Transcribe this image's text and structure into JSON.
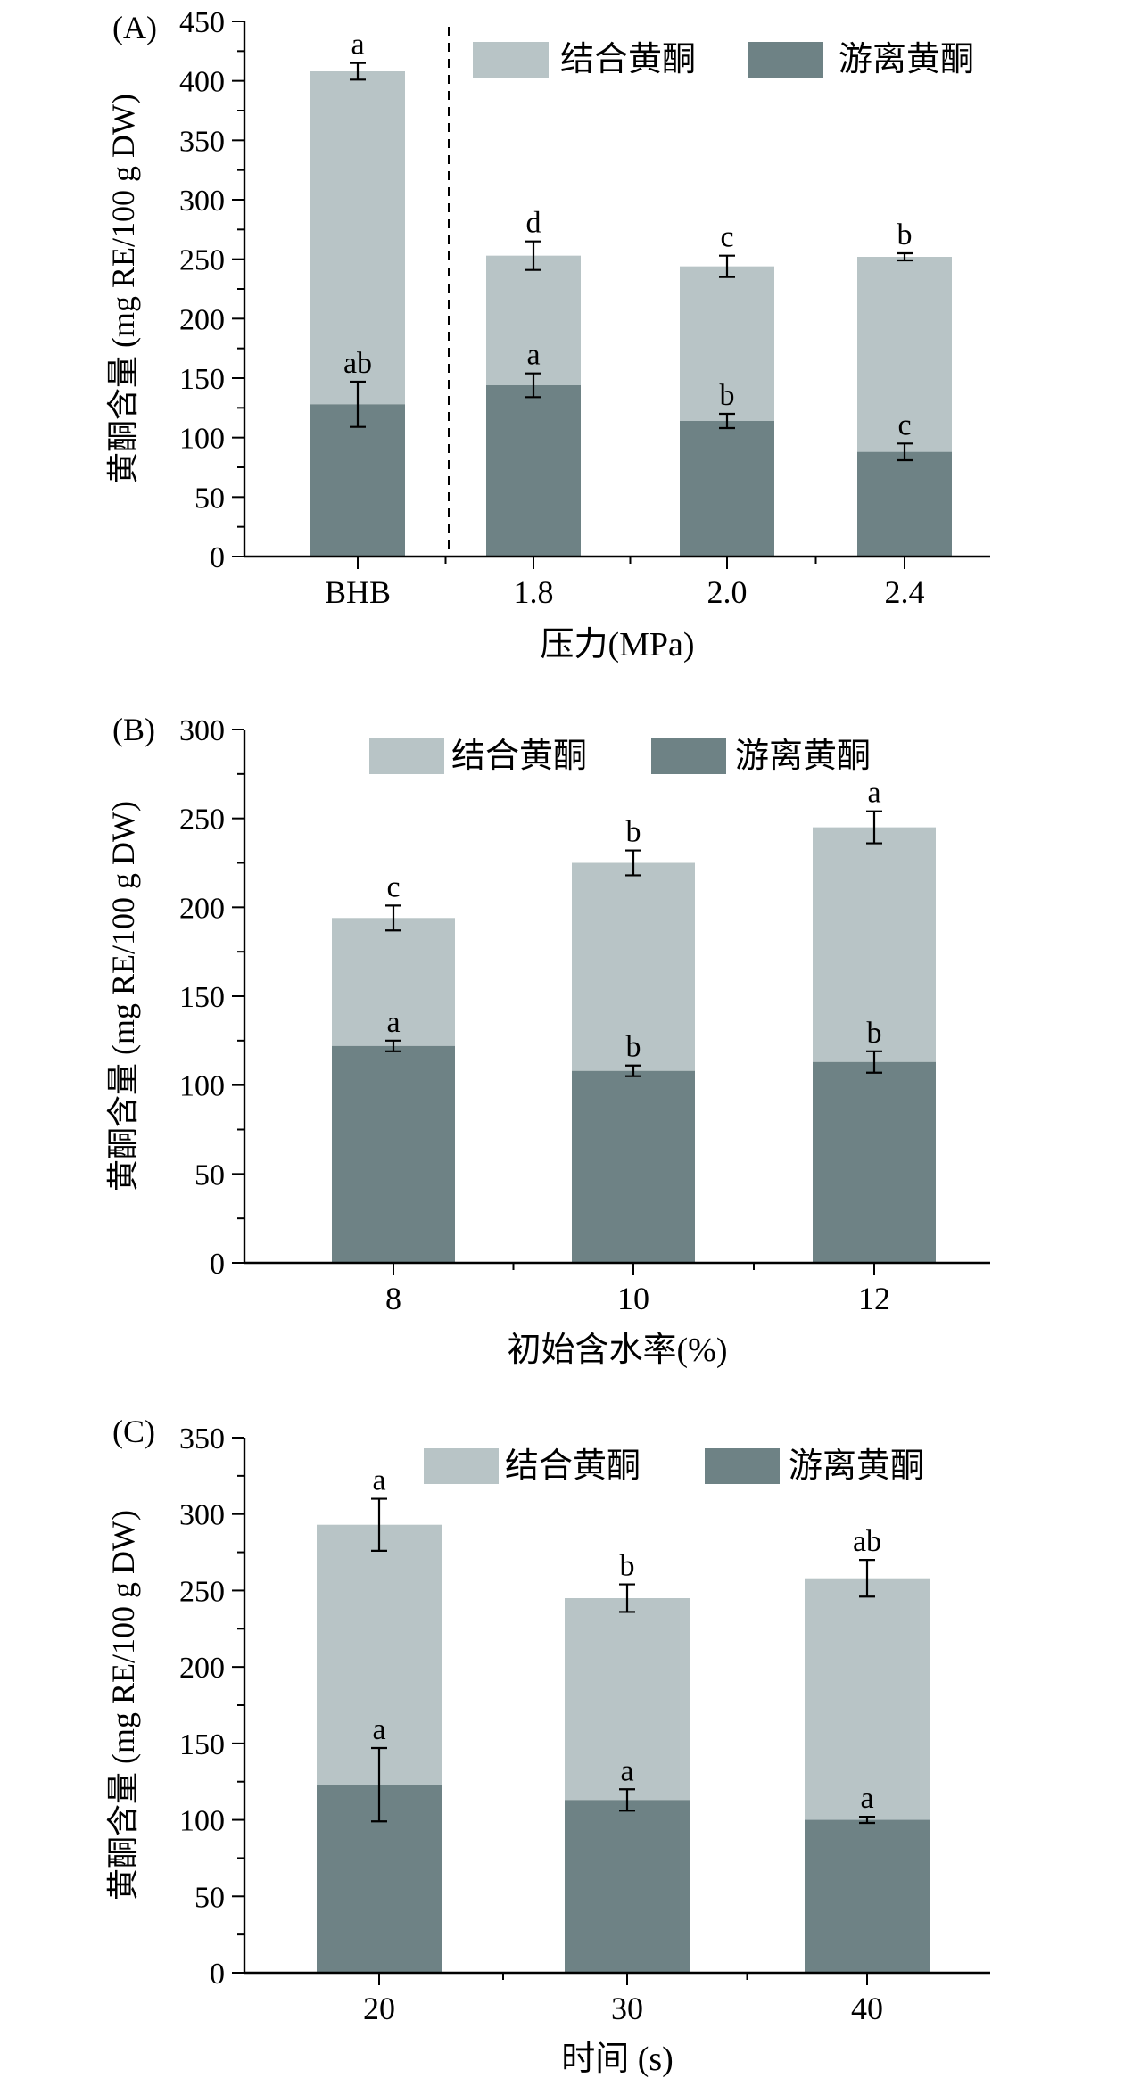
{
  "colors": {
    "bound": "#b8c4c6",
    "free": "#6e8285",
    "axis": "#000000"
  },
  "chart_data": [
    {
      "panel_label": "(A)",
      "type": "bar",
      "stacked": true,
      "categories": [
        "BHB",
        "1.8",
        "2.0",
        "2.4"
      ],
      "divider_after_category": 0,
      "xlabel": "压力(MPa)",
      "ylabel": "黄酮含量 (mg RE/100 g DW)",
      "ylim": [
        0,
        450
      ],
      "yticks": [
        0,
        50,
        100,
        150,
        200,
        250,
        300,
        350,
        400,
        450
      ],
      "legend": [
        "结合黄酮",
        "游离黄酮"
      ],
      "free": {
        "values": [
          128,
          144,
          114,
          88
        ],
        "errors": [
          19,
          10,
          6,
          7
        ],
        "letters": [
          "ab",
          "a",
          "b",
          "c"
        ]
      },
      "total": {
        "values": [
          408,
          253,
          244,
          252
        ],
        "errors": [
          7,
          12,
          9,
          3
        ],
        "letters": [
          "a",
          "d",
          "c",
          "b"
        ]
      }
    },
    {
      "panel_label": "(B)",
      "type": "bar",
      "stacked": true,
      "categories": [
        "8",
        "10",
        "12"
      ],
      "divider_after_category": null,
      "xlabel": "初始含水率(%)",
      "ylabel": "黄酮含量 (mg RE/100 g DW)",
      "ylim": [
        0,
        300
      ],
      "yticks": [
        0,
        50,
        100,
        150,
        200,
        250,
        300
      ],
      "legend": [
        "结合黄酮",
        "游离黄酮"
      ],
      "free": {
        "values": [
          122,
          108,
          113
        ],
        "errors": [
          3,
          3,
          6
        ],
        "letters": [
          "a",
          "b",
          "b"
        ]
      },
      "total": {
        "values": [
          194,
          225,
          245
        ],
        "errors": [
          7,
          7,
          9
        ],
        "letters": [
          "c",
          "b",
          "a"
        ]
      }
    },
    {
      "panel_label": "(C)",
      "type": "bar",
      "stacked": true,
      "categories": [
        "20",
        "30",
        "40"
      ],
      "divider_after_category": null,
      "xlabel": "时间 (s)",
      "ylabel": "黄酮含量 (mg RE/100 g DW)",
      "ylim": [
        0,
        350
      ],
      "yticks": [
        0,
        50,
        100,
        150,
        200,
        250,
        300,
        350
      ],
      "legend": [
        "结合黄酮",
        "游离黄酮"
      ],
      "free": {
        "values": [
          123,
          113,
          100
        ],
        "errors": [
          24,
          7,
          2
        ],
        "letters": [
          "a",
          "a",
          "a"
        ]
      },
      "total": {
        "values": [
          293,
          245,
          258
        ],
        "errors": [
          17,
          9,
          12
        ],
        "letters": [
          "a",
          "b",
          "ab"
        ]
      }
    }
  ]
}
